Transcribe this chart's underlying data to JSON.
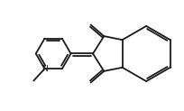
{
  "bg_color": "#ffffff",
  "line_color": "#1a1a1a",
  "line_width": 1.3,
  "figsize": [
    2.04,
    1.23
  ],
  "dpi": 100,
  "xlim": [
    0,
    10
  ],
  "ylim": [
    0,
    6
  ]
}
